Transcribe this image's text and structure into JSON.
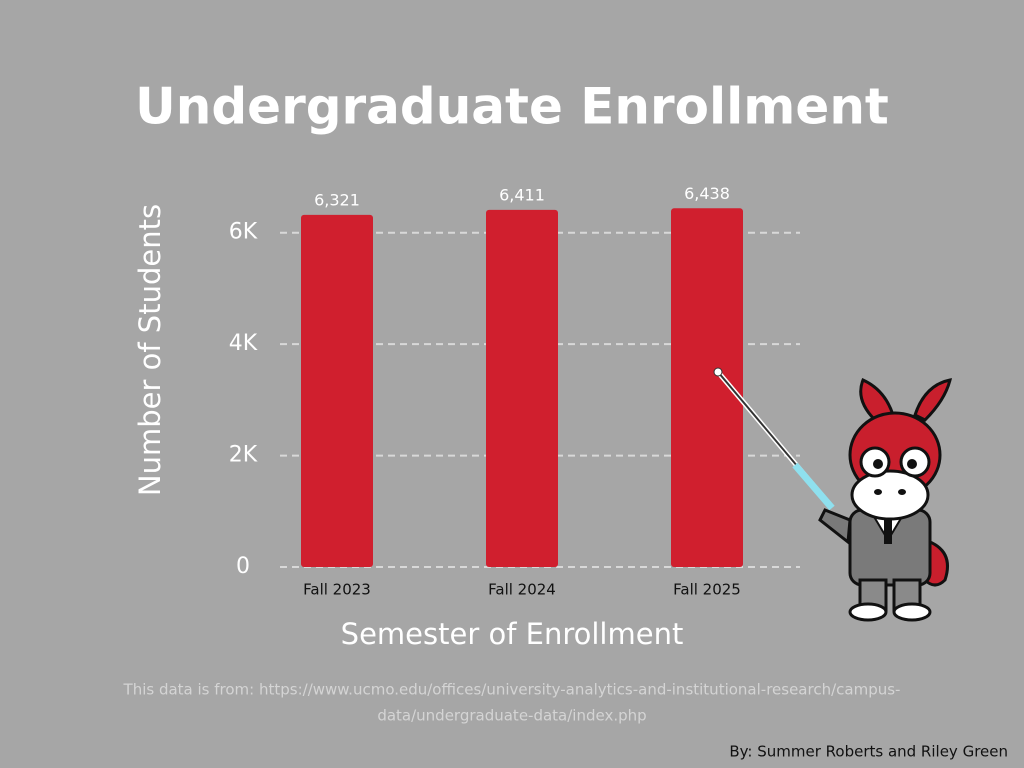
{
  "chart_data": {
    "type": "bar",
    "title": "Undergraduate Enrollment",
    "x_label": "Semester of Enrollment",
    "y_label": "Number of Students",
    "categories": [
      "Fall 2023",
      "Fall 2024",
      "Fall 2025"
    ],
    "values": [
      6321,
      6411,
      6438
    ],
    "value_labels": [
      "6,321",
      "6,411",
      "6,438"
    ],
    "color": "#d01f2e",
    "ylim": [
      0,
      7000
    ],
    "yticks": [
      0,
      {
        "value": 2000,
        "label": "2K"
      },
      {
        "value": 4000,
        "label": "4K"
      },
      {
        "value": 6000,
        "label": "6K"
      }
    ],
    "grid": true,
    "source_lines": [
      "This data is  from: https://www.ucmo.edu/offices/university-analytics-and-institutional-research/campus-",
      "data/undergraduate-data/index.php"
    ],
    "byline": "By: Summer Roberts and Riley Green"
  }
}
